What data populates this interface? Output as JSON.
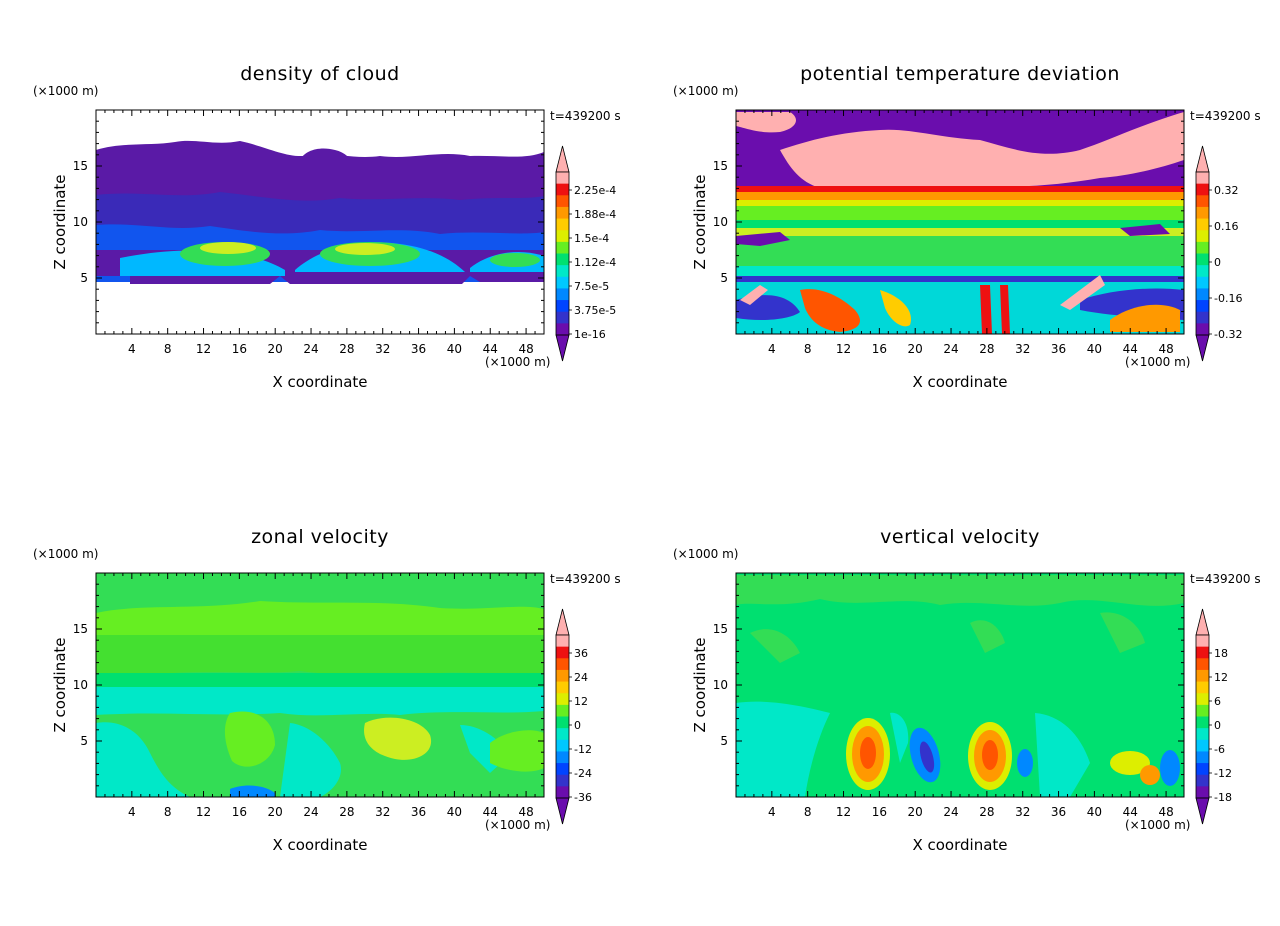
{
  "units": {
    "z_unit": "(×1000 m)",
    "x_unit": "(×1000 m)"
  },
  "chart_data": [
    {
      "type": "heatmap",
      "title": "density of cloud",
      "time_label": "t=439200 s",
      "xlabel": "X coordinate",
      "ylabel": "Z coordinate",
      "x_ticks": [
        4,
        8,
        12,
        16,
        20,
        24,
        28,
        32,
        36,
        40,
        44,
        48
      ],
      "y_ticks": [
        5,
        10,
        15
      ],
      "xlim": [
        0,
        50
      ],
      "ylim": [
        0,
        20
      ],
      "colorbar_labels": [
        "2.25e-4",
        "1.88e-4",
        "1.5e-4",
        "1.12e-4",
        "7.5e-5",
        "3.75e-5",
        "1e-16"
      ],
      "colorbar_colors": [
        "#6a0dad",
        "#3333cc",
        "#0044ff",
        "#0088ff",
        "#00c8ff",
        "#00e8c8",
        "#00e070",
        "#66ee22",
        "#ddee00",
        "#ffcc00",
        "#ff9900",
        "#ff5500",
        "#ee1111",
        "#ffb0b0"
      ]
    },
    {
      "type": "heatmap",
      "title": "potential temperature deviation",
      "time_label": "t=439200 s",
      "xlabel": "X coordinate",
      "ylabel": "Z coordinate",
      "x_ticks": [
        4,
        8,
        12,
        16,
        20,
        24,
        28,
        32,
        36,
        40,
        44,
        48
      ],
      "y_ticks": [
        5,
        10,
        15
      ],
      "xlim": [
        0,
        50
      ],
      "ylim": [
        0,
        20
      ],
      "colorbar_labels": [
        "0.32",
        "0.16",
        "0",
        "-0.16",
        "-0.32"
      ],
      "colorbar_colors": [
        "#6a0dad",
        "#3333cc",
        "#0044ff",
        "#0088ff",
        "#00c8ff",
        "#00e8c8",
        "#00e070",
        "#66ee22",
        "#ddee00",
        "#ffcc00",
        "#ff9900",
        "#ff5500",
        "#ee1111",
        "#ffb0b0"
      ]
    },
    {
      "type": "heatmap",
      "title": "zonal velocity",
      "time_label": "t=439200 s",
      "xlabel": "X coordinate",
      "ylabel": "Z coordinate",
      "x_ticks": [
        4,
        8,
        12,
        16,
        20,
        24,
        28,
        32,
        36,
        40,
        44,
        48
      ],
      "y_ticks": [
        5,
        10,
        15
      ],
      "xlim": [
        0,
        50
      ],
      "ylim": [
        0,
        20
      ],
      "colorbar_labels": [
        "36",
        "24",
        "12",
        "0",
        "-12",
        "-24",
        "-36"
      ],
      "colorbar_colors": [
        "#6a0dad",
        "#3333cc",
        "#0044ff",
        "#0088ff",
        "#00c8ff",
        "#00e8c8",
        "#00e070",
        "#66ee22",
        "#ddee00",
        "#ffcc00",
        "#ff9900",
        "#ff5500",
        "#ee1111",
        "#ffb0b0"
      ]
    },
    {
      "type": "heatmap",
      "title": "vertical velocity",
      "time_label": "t=439200 s",
      "xlabel": "X coordinate",
      "ylabel": "Z coordinate",
      "x_ticks": [
        4,
        8,
        12,
        16,
        20,
        24,
        28,
        32,
        36,
        40,
        44,
        48
      ],
      "y_ticks": [
        5,
        10,
        15
      ],
      "xlim": [
        0,
        50
      ],
      "ylim": [
        0,
        20
      ],
      "colorbar_labels": [
        "18",
        "12",
        "6",
        "0",
        "-6",
        "-12",
        "-18"
      ],
      "colorbar_colors": [
        "#6a0dad",
        "#3333cc",
        "#0044ff",
        "#0088ff",
        "#00c8ff",
        "#00e8c8",
        "#00e070",
        "#66ee22",
        "#ddee00",
        "#ffcc00",
        "#ff9900",
        "#ff5500",
        "#ee1111",
        "#ffb0b0"
      ]
    }
  ]
}
